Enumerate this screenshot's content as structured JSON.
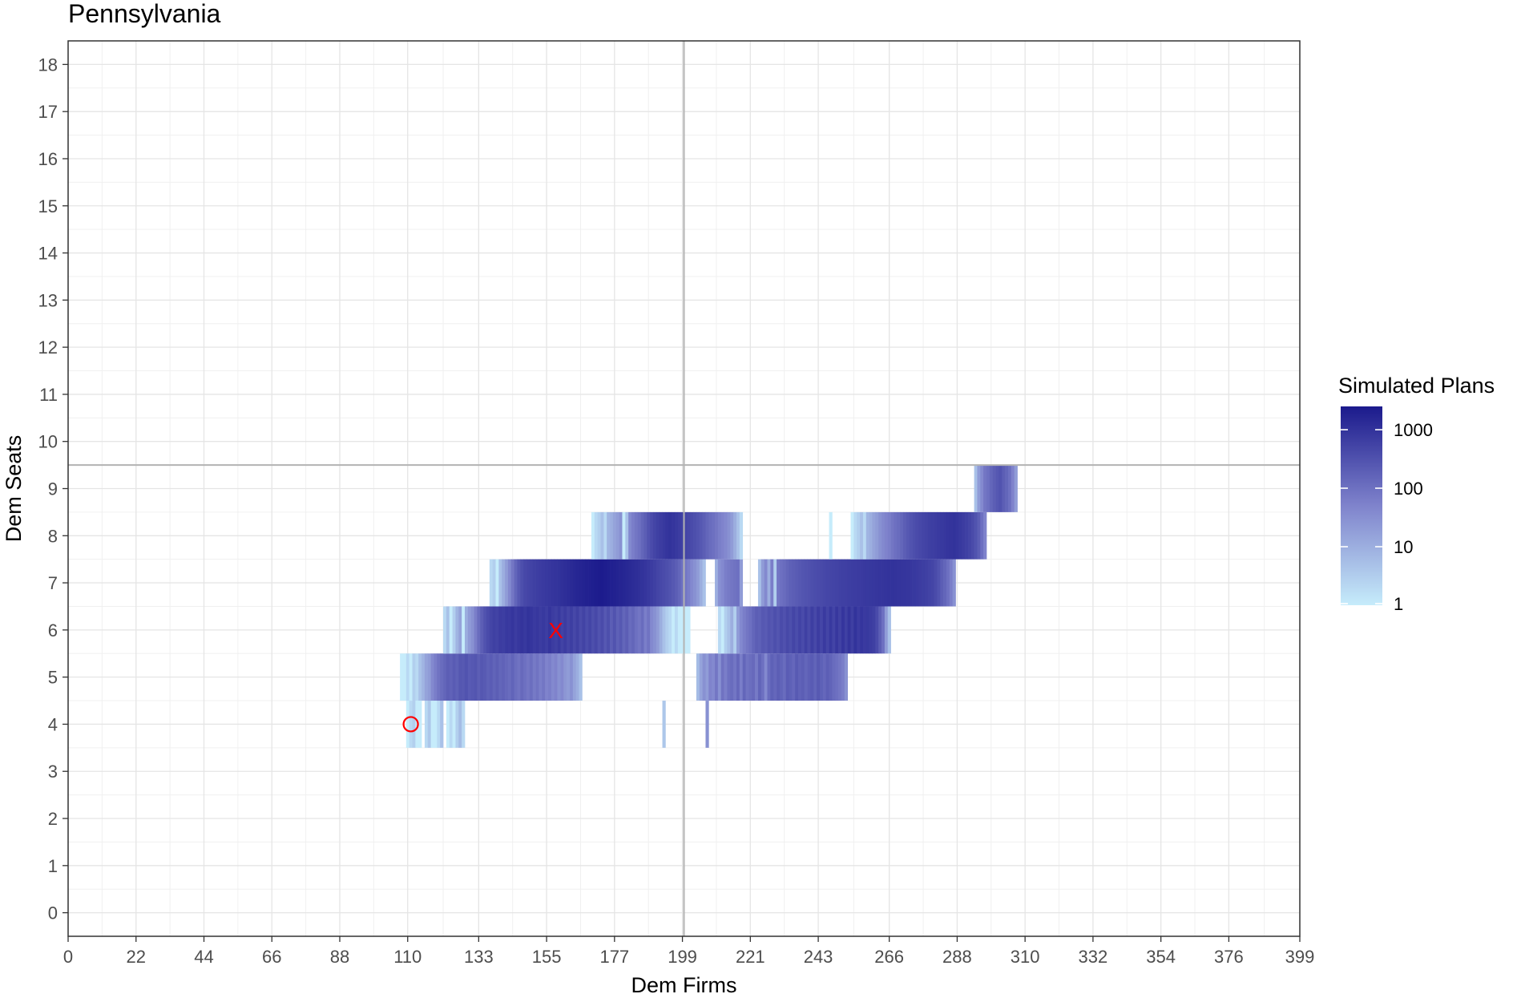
{
  "chart_data": {
    "type": "heatmap",
    "title": "Pennsylvania",
    "xlabel": "Dem Firms",
    "ylabel": "Dem Seats",
    "xlim": [
      0,
      399
    ],
    "ylim": [
      -0.5,
      18.5
    ],
    "x_ticks": [
      "0",
      "22",
      "44",
      "66",
      "88",
      "110",
      "133",
      "155",
      "177",
      "199",
      "221",
      "243",
      "266",
      "288",
      "310",
      "332",
      "354",
      "376",
      "399"
    ],
    "y_ticks": [
      "0",
      "1",
      "2",
      "3",
      "4",
      "5",
      "6",
      "7",
      "8",
      "9",
      "10",
      "11",
      "12",
      "13",
      "14",
      "15",
      "16",
      "17",
      "18"
    ],
    "grid": true,
    "reference_lines": {
      "x": 199.5,
      "y": 9.5
    },
    "color_scale": {
      "low": "#c6ecfb",
      "mid": "#7f83cc",
      "high": "#1b1a8c",
      "log": true
    },
    "legend": {
      "title": "Simulated Plans",
      "position": "right",
      "breaks": [
        {
          "label": "1000",
          "value": 1000
        },
        {
          "label": "100",
          "value": 100
        },
        {
          "label": "10",
          "value": 10
        },
        {
          "label": "1",
          "value": 1
        }
      ]
    },
    "cells": [
      {
        "y": 4,
        "x_range": [
          110,
          128
        ],
        "counts": [
          1,
          2,
          3,
          1,
          1,
          0,
          2,
          4,
          1,
          1,
          2,
          5,
          0,
          1,
          2,
          1,
          3,
          6,
          2
        ]
      },
      {
        "y": 4,
        "x_range": [
          193,
          207
        ],
        "counts": [
          4,
          0,
          0,
          0,
          0,
          0,
          0,
          0,
          0,
          0,
          0,
          0,
          0,
          0,
          30
        ]
      },
      {
        "y": 5,
        "x_range": [
          108,
          166
        ],
        "counts": [
          1,
          1,
          2,
          1,
          3,
          2,
          5,
          8,
          15,
          20,
          40,
          60,
          90,
          120,
          150,
          200,
          170,
          220,
          180,
          260,
          240,
          300,
          220,
          250,
          280,
          200,
          260,
          230,
          180,
          210,
          160,
          200,
          150,
          170,
          140,
          120,
          160,
          110,
          90,
          130,
          100,
          80,
          110,
          70,
          90,
          60,
          80,
          50,
          60,
          40,
          50,
          30,
          40,
          25,
          20,
          30,
          15,
          10,
          5
        ]
      },
      {
        "y": 5,
        "x_range": [
          204,
          252
        ],
        "counts": [
          6,
          15,
          30,
          20,
          50,
          40,
          80,
          30,
          90,
          60,
          100,
          120,
          80,
          140,
          60,
          150,
          90,
          110,
          130,
          70,
          160,
          100,
          40,
          120,
          180,
          140,
          200,
          160,
          120,
          210,
          180,
          140,
          230,
          170,
          200,
          150,
          190,
          220,
          160,
          240,
          180,
          140,
          200,
          160,
          120,
          100,
          80,
          60,
          30
        ]
      },
      {
        "y": 6,
        "x_range": [
          122,
          201
        ],
        "counts": [
          2,
          5,
          1,
          3,
          8,
          15,
          1,
          10,
          20,
          30,
          60,
          120,
          200,
          300,
          400,
          500,
          600,
          550,
          700,
          650,
          800,
          750,
          900,
          700,
          850,
          950,
          800,
          1000,
          900,
          750,
          850,
          700,
          800,
          650,
          900,
          700,
          600,
          800,
          550,
          700,
          500,
          650,
          450,
          600,
          400,
          550,
          380,
          500,
          350,
          450,
          300,
          400,
          250,
          350,
          200,
          300,
          180,
          250,
          150,
          200,
          120,
          150,
          100,
          80,
          120,
          60,
          90,
          40,
          30,
          20,
          10,
          5,
          3,
          2,
          1,
          2,
          1,
          1,
          1,
          1
        ]
      },
      {
        "y": 6,
        "x_range": [
          211,
          266
        ],
        "counts": [
          2,
          1,
          3,
          5,
          10,
          3,
          20,
          40,
          60,
          80,
          100,
          150,
          200,
          180,
          250,
          220,
          300,
          260,
          350,
          280,
          400,
          320,
          450,
          350,
          500,
          380,
          550,
          400,
          600,
          420,
          650,
          450,
          700,
          480,
          750,
          500,
          800,
          520,
          850,
          560,
          900,
          600,
          950,
          640,
          1000,
          700,
          900,
          750,
          800,
          700,
          600,
          400,
          200,
          100,
          20,
          5
        ]
      },
      {
        "y": 7,
        "x_range": [
          137,
          206
        ],
        "counts": [
          2,
          3,
          1,
          5,
          10,
          20,
          40,
          80,
          150,
          250,
          350,
          450,
          500,
          550,
          600,
          650,
          700,
          750,
          800,
          850,
          900,
          950,
          1000,
          1100,
          1200,
          1300,
          1400,
          1500,
          1600,
          1700,
          1800,
          1900,
          2000,
          2100,
          2200,
          2300,
          2400,
          2200,
          2100,
          2000,
          1900,
          1800,
          1700,
          1600,
          1500,
          1400,
          1300,
          1200,
          1100,
          1000,
          900,
          800,
          700,
          600,
          500,
          450,
          400,
          350,
          300,
          250,
          200,
          150,
          100,
          80,
          60,
          40,
          30,
          20,
          10,
          5
        ]
      },
      {
        "y": 7,
        "x_range": [
          210,
          220
        ],
        "counts": [
          10,
          30,
          40,
          60,
          70,
          80,
          90,
          100,
          20,
          0,
          0
        ]
      },
      {
        "y": 7,
        "x_range": [
          224,
          287
        ],
        "counts": [
          5,
          20,
          40,
          10,
          60,
          3,
          80,
          100,
          120,
          150,
          180,
          200,
          220,
          250,
          280,
          300,
          320,
          350,
          380,
          400,
          420,
          450,
          480,
          500,
          520,
          550,
          580,
          600,
          620,
          650,
          680,
          700,
          720,
          750,
          780,
          800,
          820,
          850,
          880,
          900,
          920,
          950,
          980,
          1000,
          980,
          950,
          920,
          900,
          880,
          850,
          800,
          750,
          700,
          650,
          600,
          550,
          500,
          400,
          300,
          200,
          150,
          100,
          60,
          30
        ]
      },
      {
        "y": 8,
        "x_range": [
          170,
          218
        ],
        "counts": [
          1,
          2,
          3,
          5,
          2,
          8,
          10,
          15,
          20,
          30,
          1,
          5,
          40,
          60,
          80,
          100,
          150,
          200,
          300,
          400,
          500,
          600,
          700,
          800,
          900,
          1000,
          900,
          800,
          700,
          600,
          500,
          450,
          400,
          350,
          300,
          250,
          200,
          150,
          120,
          100,
          80,
          60,
          50,
          40,
          30,
          20,
          10,
          5,
          2
        ]
      },
      {
        "y": 8,
        "x_range": [
          247,
          297
        ],
        "counts": [
          1,
          0,
          0,
          0,
          0,
          0,
          0,
          1,
          2,
          3,
          5,
          2,
          8,
          10,
          15,
          20,
          30,
          40,
          50,
          60,
          80,
          100,
          120,
          150,
          200,
          250,
          300,
          350,
          400,
          450,
          500,
          550,
          600,
          650,
          700,
          750,
          800,
          850,
          900,
          950,
          1000,
          900,
          800,
          700,
          600,
          500,
          400,
          300,
          200,
          100,
          50
        ]
      },
      {
        "y": 9,
        "x_range": [
          294,
          307
        ],
        "counts": [
          5,
          20,
          40,
          80,
          100,
          150,
          200,
          250,
          300,
          200,
          150,
          100,
          50,
          20
        ]
      }
    ],
    "points": [
      {
        "label": "O",
        "x": 111,
        "y": 4,
        "color": "#ff0000"
      },
      {
        "label": "X",
        "x": 158,
        "y": 6,
        "color": "#ff0000"
      }
    ]
  }
}
